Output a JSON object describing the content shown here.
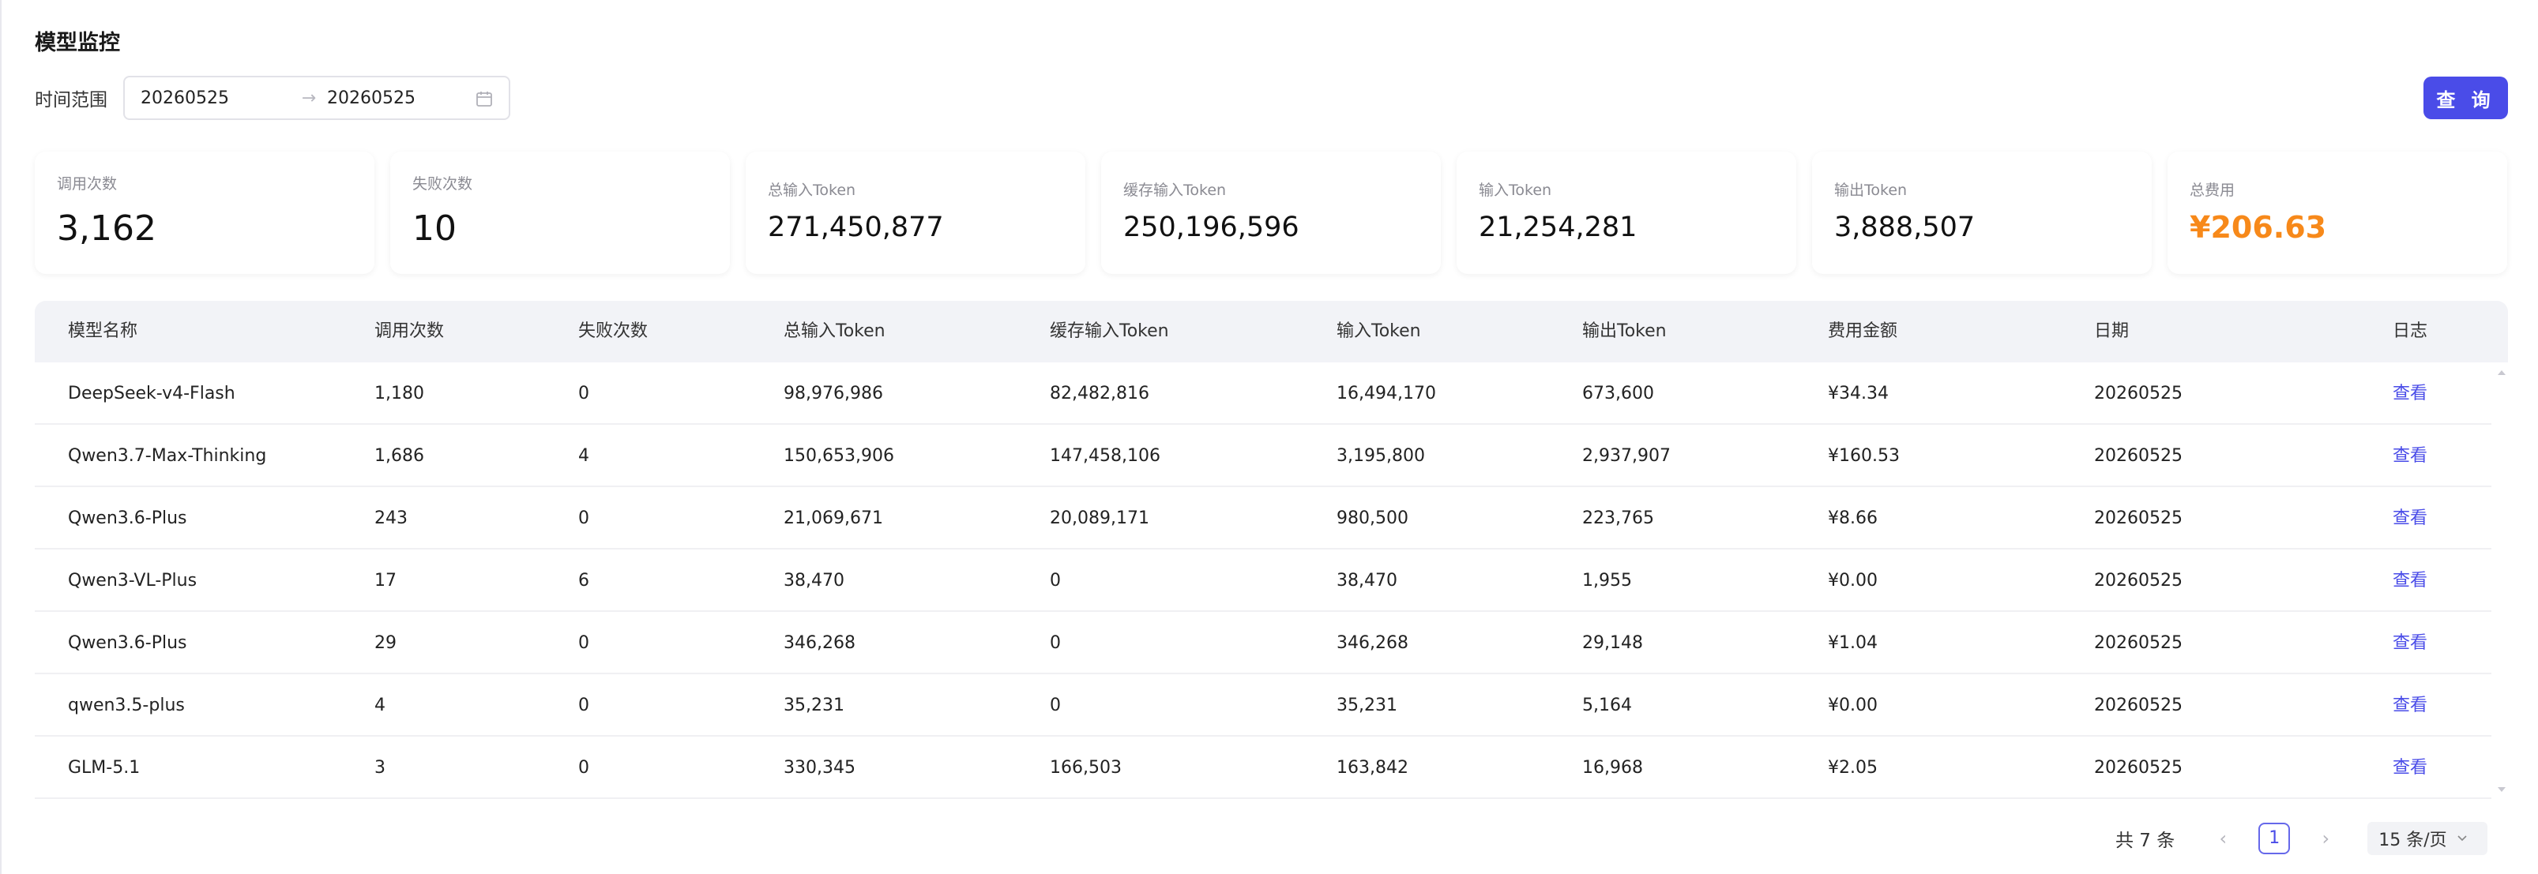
{
  "page": {
    "title": "模型监控"
  },
  "filter": {
    "label": "时间范围",
    "start": "20260525",
    "separator": "→",
    "end": "20260525",
    "query_label": "查 询"
  },
  "stats": [
    {
      "label": "调用次数",
      "value": "3,162"
    },
    {
      "label": "失败次数",
      "value": "10"
    },
    {
      "label": "总输入Token",
      "value": "271,450,877"
    },
    {
      "label": "缓存输入Token",
      "value": "250,196,596"
    },
    {
      "label": "输入Token",
      "value": "21,254,281"
    },
    {
      "label": "输出Token",
      "value": "3,888,507"
    },
    {
      "label": "总费用",
      "value": "¥206.63"
    }
  ],
  "table": {
    "columns": [
      "模型名称",
      "调用次数",
      "失败次数",
      "总输入Token",
      "缓存输入Token",
      "输入Token",
      "输出Token",
      "费用金额",
      "日期",
      "日志"
    ],
    "rows": [
      [
        "DeepSeek-v4-Flash",
        "1,180",
        "0",
        "98,976,986",
        "82,482,816",
        "16,494,170",
        "673,600",
        "¥34.34",
        "20260525",
        "查看"
      ],
      [
        "Qwen3.7-Max-Thinking",
        "1,686",
        "4",
        "150,653,906",
        "147,458,106",
        "3,195,800",
        "2,937,907",
        "¥160.53",
        "20260525",
        "查看"
      ],
      [
        "Qwen3.6-Plus",
        "243",
        "0",
        "21,069,671",
        "20,089,171",
        "980,500",
        "223,765",
        "¥8.66",
        "20260525",
        "查看"
      ],
      [
        "Qwen3-VL-Plus",
        "17",
        "6",
        "38,470",
        "0",
        "38,470",
        "1,955",
        "¥0.00",
        "20260525",
        "查看"
      ],
      [
        "Qwen3.6-Plus",
        "29",
        "0",
        "346,268",
        "0",
        "346,268",
        "29,148",
        "¥1.04",
        "20260525",
        "查看"
      ],
      [
        "qwen3.5-plus",
        "4",
        "0",
        "35,231",
        "0",
        "35,231",
        "5,164",
        "¥0.00",
        "20260525",
        "查看"
      ],
      [
        "GLM-5.1",
        "3",
        "0",
        "330,345",
        "166,503",
        "163,842",
        "16,968",
        "¥2.05",
        "20260525",
        "查看"
      ]
    ]
  },
  "pagination": {
    "total": "共 7 条",
    "current_page": "1",
    "page_size": "15 条/页"
  },
  "colors": {
    "accent": "#4a4ce8",
    "cost": "#f7891a"
  },
  "icons": {
    "date": "calendar-icon",
    "prev": "chevron-left-icon",
    "next": "chevron-right-icon",
    "size": "chevron-down-icon"
  }
}
